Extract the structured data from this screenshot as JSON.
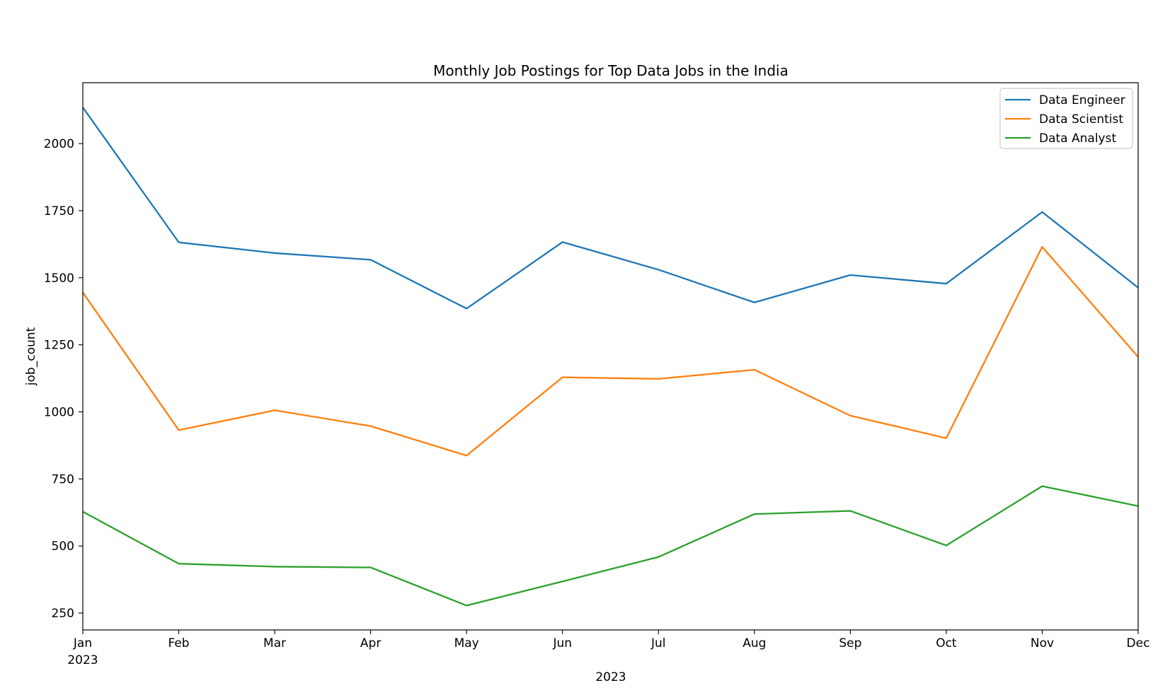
{
  "chart_data": {
    "type": "line",
    "title": "Monthly Job Postings for Top Data Jobs in the India",
    "xlabel": "2023",
    "ylabel": "job_count",
    "categories": [
      "Jan",
      "Feb",
      "Mar",
      "Apr",
      "May",
      "Jun",
      "Jul",
      "Aug",
      "Sep",
      "Oct",
      "Nov",
      "Dec"
    ],
    "x_first_sublabel": "2023",
    "yticks": [
      250,
      500,
      750,
      1000,
      1250,
      1500,
      1750,
      2000
    ],
    "ylim": [
      187,
      2227
    ],
    "grid": false,
    "legend_position": "top-right",
    "series": [
      {
        "name": "Data Engineer",
        "color": "#1f77b4",
        "values": [
          2135,
          1632,
          1592,
          1567,
          1385,
          1633,
          1530,
          1408,
          1510,
          1478,
          1745,
          1463
        ]
      },
      {
        "name": "Data Scientist",
        "color": "#ff7f0e",
        "values": [
          1445,
          932,
          1006,
          947,
          837,
          1129,
          1123,
          1157,
          986,
          902,
          1615,
          1205
        ]
      },
      {
        "name": "Data Analyst",
        "color": "#2ca02c",
        "values": [
          628,
          434,
          423,
          420,
          278,
          368,
          459,
          619,
          631,
          502,
          723,
          649
        ]
      }
    ]
  }
}
